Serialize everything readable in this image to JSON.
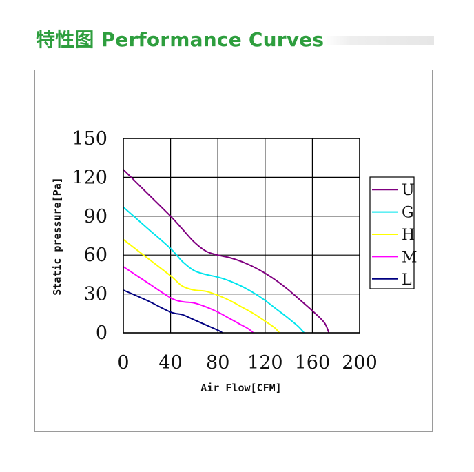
{
  "header": {
    "title": "特性图  Performance Curves"
  },
  "chart_data": {
    "type": "line",
    "xlabel": "Air Flow[CFM]",
    "ylabel": "Static pressure[Pa]",
    "xlim": [
      0,
      200
    ],
    "ylim": [
      0,
      150
    ],
    "xticks": [
      0,
      40,
      80,
      120,
      160,
      200
    ],
    "yticks": [
      0,
      30,
      60,
      90,
      120,
      150
    ],
    "grid": true,
    "legend_position": "right",
    "series": [
      {
        "name": "U",
        "color": "#800080",
        "x": [
          0,
          20,
          40,
          50,
          60,
          70,
          80,
          90,
          100,
          110,
          120,
          130,
          140,
          150,
          160,
          170,
          174
        ],
        "y": [
          126,
          108,
          90,
          80,
          70,
          63,
          60,
          58,
          55,
          51,
          46,
          40,
          33,
          25,
          17,
          8,
          0
        ]
      },
      {
        "name": "G",
        "color": "#00e5ee",
        "x": [
          0,
          20,
          40,
          50,
          60,
          70,
          80,
          90,
          100,
          110,
          120,
          130,
          140,
          148,
          153
        ],
        "y": [
          97,
          81,
          65,
          55,
          48,
          45,
          43,
          40,
          36,
          31,
          25,
          18,
          11,
          5,
          0
        ]
      },
      {
        "name": "H",
        "color": "#ffff00",
        "x": [
          0,
          20,
          40,
          50,
          60,
          70,
          80,
          90,
          100,
          110,
          120,
          128,
          132
        ],
        "y": [
          72,
          58,
          44,
          36,
          33,
          32,
          29,
          25,
          20,
          15,
          9,
          4,
          0
        ]
      },
      {
        "name": "M",
        "color": "#ff00ff",
        "x": [
          0,
          20,
          40,
          50,
          60,
          70,
          80,
          90,
          100,
          106,
          110
        ],
        "y": [
          51,
          39,
          27,
          24,
          23,
          20,
          16,
          11,
          6,
          3,
          0
        ]
      },
      {
        "name": "L",
        "color": "#000080",
        "x": [
          0,
          20,
          40,
          50,
          60,
          70,
          80,
          84
        ],
        "y": [
          33,
          25,
          16,
          14,
          10,
          6,
          2,
          0
        ]
      }
    ]
  }
}
